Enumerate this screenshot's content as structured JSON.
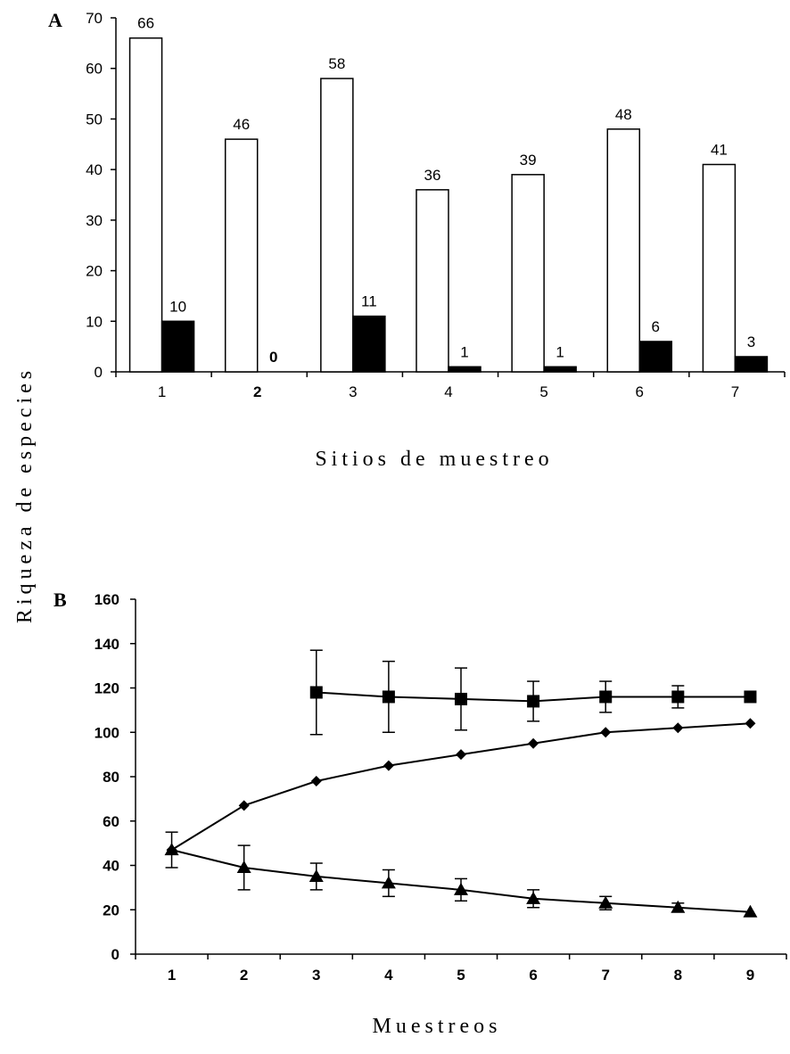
{
  "ylabel": "Riqueza de especies",
  "chart_data": [
    {
      "type": "bar",
      "panel": "A",
      "xlabel": "Sitios de muestreo",
      "categories": [
        "1",
        "2",
        "3",
        "4",
        "5",
        "6",
        "7"
      ],
      "series": [
        {
          "color": "#ffffff",
          "values": [
            66,
            46,
            58,
            36,
            39,
            48,
            41
          ]
        },
        {
          "color": "#000000",
          "values": [
            10,
            0,
            11,
            1,
            1,
            6,
            3
          ]
        }
      ],
      "ylim": [
        0,
        70
      ],
      "yticks": [
        0,
        10,
        20,
        30,
        40,
        50,
        60,
        70
      ],
      "grid": false
    },
    {
      "type": "line",
      "panel": "B",
      "xlabel": "Muestreos",
      "x": [
        1,
        2,
        3,
        4,
        5,
        6,
        7,
        8,
        9
      ],
      "series": [
        {
          "marker": "square",
          "x": [
            3,
            4,
            5,
            6,
            7,
            8,
            9
          ],
          "values": [
            118,
            116,
            115,
            114,
            116,
            116,
            116
          ],
          "error": [
            19,
            16,
            14,
            9,
            7,
            5,
            0
          ]
        },
        {
          "marker": "diamond",
          "x": [
            1,
            2,
            3,
            4,
            5,
            6,
            7,
            8,
            9
          ],
          "values": [
            47,
            67,
            78,
            85,
            90,
            95,
            100,
            102,
            104
          ],
          "error": [
            0,
            0,
            0,
            0,
            0,
            0,
            0,
            0,
            0
          ]
        },
        {
          "marker": "triangle",
          "x": [
            1,
            2,
            3,
            4,
            5,
            6,
            7,
            8,
            9
          ],
          "values": [
            47,
            39,
            35,
            32,
            29,
            25,
            23,
            21,
            19
          ],
          "error": [
            8,
            10,
            6,
            6,
            5,
            4,
            3,
            2,
            0
          ]
        }
      ],
      "ylim": [
        0,
        160
      ],
      "yticks": [
        0,
        20,
        40,
        60,
        80,
        100,
        120,
        140,
        160
      ],
      "grid": false
    }
  ]
}
